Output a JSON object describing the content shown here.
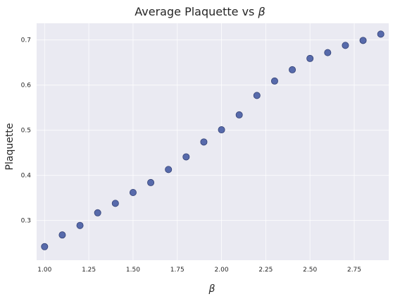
{
  "chart_data": {
    "type": "scatter",
    "title": "Average Plaquette vs β",
    "xlabel": "β",
    "ylabel": "Plaquette",
    "xlim": [
      0.955,
      2.945
    ],
    "ylim": [
      0.212,
      0.737
    ],
    "xticks": [
      "1.00",
      "1.25",
      "1.50",
      "1.75",
      "2.00",
      "2.25",
      "2.50",
      "2.75"
    ],
    "xtick_values": [
      1.0,
      1.25,
      1.5,
      1.75,
      2.0,
      2.25,
      2.5,
      2.75
    ],
    "yticks": [
      "0.3",
      "0.4",
      "0.5",
      "0.6",
      "0.7"
    ],
    "ytick_values": [
      0.3,
      0.4,
      0.5,
      0.6,
      0.7
    ],
    "grid": true,
    "colors": {
      "background": "#eaeaf2",
      "point_fill": "#5064a8",
      "point_edge": "#2b3a70"
    },
    "series": [
      {
        "x": [
          1.0,
          1.1,
          1.2,
          1.3,
          1.4,
          1.5,
          1.6,
          1.7,
          1.8,
          1.9,
          2.0,
          2.1,
          2.2,
          2.3,
          2.4,
          2.5,
          2.6,
          2.7,
          2.8,
          2.9
        ],
        "y": [
          0.242,
          0.268,
          0.289,
          0.317,
          0.338,
          0.362,
          0.384,
          0.413,
          0.441,
          0.474,
          0.501,
          0.534,
          0.577,
          0.609,
          0.634,
          0.659,
          0.672,
          0.688,
          0.699,
          0.713
        ]
      }
    ]
  }
}
